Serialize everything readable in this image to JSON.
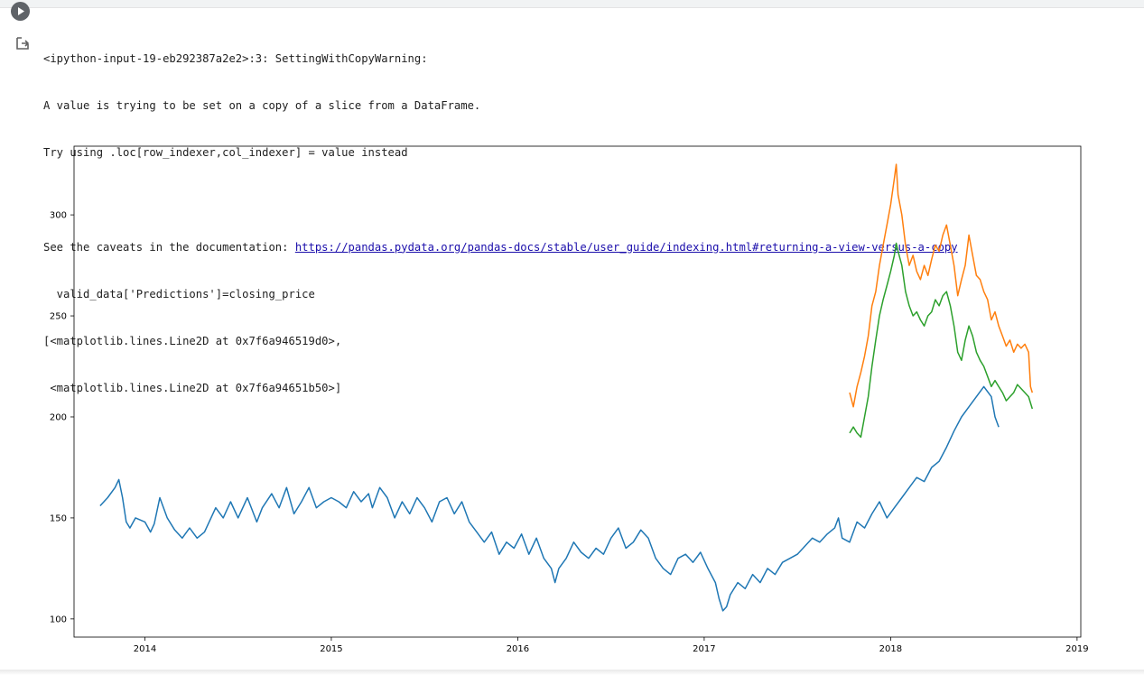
{
  "output": {
    "lines": [
      "<ipython-input-19-eb292387a2e2>:3: SettingWithCopyWarning:",
      "A value is trying to be set on a copy of a slice from a DataFrame.",
      "Try using .loc[row_indexer,col_indexer] = value instead",
      "",
      "  valid_data['Predictions']=closing_price",
      "[<matplotlib.lines.Line2D at 0x7f6a946519d0>,",
      " <matplotlib.lines.Line2D at 0x7f6a94651b50>]"
    ],
    "caveat_prefix": "See the caveats in the documentation: ",
    "caveat_link": "https://pandas.pydata.org/pandas-docs/stable/user_guide/indexing.html#returning-a-view-versus-a-copy"
  },
  "icons": {
    "run": "play-circle-icon",
    "output": "output-arrow-icon"
  },
  "chart_data": {
    "type": "line",
    "title": "",
    "xlabel": "",
    "ylabel": "",
    "xlim": [
      2013.62,
      2019.02
    ],
    "ylim": [
      91,
      334
    ],
    "xticks": [
      "2014",
      "2015",
      "2016",
      "2017",
      "2018",
      "2019"
    ],
    "yticks": [
      "100",
      "150",
      "200",
      "250",
      "300"
    ],
    "grid": false,
    "legend": "none",
    "series": [
      {
        "color": "#1f77b4",
        "points": [
          [
            2013.76,
            156
          ],
          [
            2013.8,
            160
          ],
          [
            2013.84,
            165
          ],
          [
            2013.86,
            169
          ],
          [
            2013.88,
            160
          ],
          [
            2013.9,
            148
          ],
          [
            2013.92,
            145
          ],
          [
            2013.95,
            150
          ],
          [
            2014.0,
            148
          ],
          [
            2014.03,
            143
          ],
          [
            2014.05,
            147
          ],
          [
            2014.08,
            160
          ],
          [
            2014.12,
            150
          ],
          [
            2014.16,
            144
          ],
          [
            2014.2,
            140
          ],
          [
            2014.24,
            145
          ],
          [
            2014.28,
            140
          ],
          [
            2014.32,
            143
          ],
          [
            2014.38,
            155
          ],
          [
            2014.42,
            150
          ],
          [
            2014.46,
            158
          ],
          [
            2014.5,
            150
          ],
          [
            2014.55,
            160
          ],
          [
            2014.6,
            148
          ],
          [
            2014.63,
            155
          ],
          [
            2014.68,
            162
          ],
          [
            2014.72,
            155
          ],
          [
            2014.76,
            165
          ],
          [
            2014.8,
            152
          ],
          [
            2014.84,
            158
          ],
          [
            2014.88,
            165
          ],
          [
            2014.92,
            155
          ],
          [
            2014.96,
            158
          ],
          [
            2015.0,
            160
          ],
          [
            2015.04,
            158
          ],
          [
            2015.08,
            155
          ],
          [
            2015.12,
            163
          ],
          [
            2015.16,
            158
          ],
          [
            2015.2,
            162
          ],
          [
            2015.22,
            155
          ],
          [
            2015.26,
            165
          ],
          [
            2015.3,
            160
          ],
          [
            2015.34,
            150
          ],
          [
            2015.38,
            158
          ],
          [
            2015.42,
            152
          ],
          [
            2015.46,
            160
          ],
          [
            2015.5,
            155
          ],
          [
            2015.54,
            148
          ],
          [
            2015.58,
            158
          ],
          [
            2015.62,
            160
          ],
          [
            2015.66,
            152
          ],
          [
            2015.7,
            158
          ],
          [
            2015.74,
            148
          ],
          [
            2015.78,
            143
          ],
          [
            2015.82,
            138
          ],
          [
            2015.86,
            143
          ],
          [
            2015.9,
            132
          ],
          [
            2015.94,
            138
          ],
          [
            2015.98,
            135
          ],
          [
            2016.02,
            142
          ],
          [
            2016.06,
            132
          ],
          [
            2016.1,
            140
          ],
          [
            2016.14,
            130
          ],
          [
            2016.18,
            125
          ],
          [
            2016.2,
            118
          ],
          [
            2016.22,
            125
          ],
          [
            2016.26,
            130
          ],
          [
            2016.3,
            138
          ],
          [
            2016.34,
            133
          ],
          [
            2016.38,
            130
          ],
          [
            2016.42,
            135
          ],
          [
            2016.46,
            132
          ],
          [
            2016.5,
            140
          ],
          [
            2016.54,
            145
          ],
          [
            2016.58,
            135
          ],
          [
            2016.62,
            138
          ],
          [
            2016.66,
            144
          ],
          [
            2016.7,
            140
          ],
          [
            2016.74,
            130
          ],
          [
            2016.78,
            125
          ],
          [
            2016.82,
            122
          ],
          [
            2016.86,
            130
          ],
          [
            2016.9,
            132
          ],
          [
            2016.94,
            128
          ],
          [
            2016.98,
            133
          ],
          [
            2017.02,
            125
          ],
          [
            2017.06,
            118
          ],
          [
            2017.08,
            110
          ],
          [
            2017.1,
            104
          ],
          [
            2017.12,
            106
          ],
          [
            2017.14,
            112
          ],
          [
            2017.18,
            118
          ],
          [
            2017.22,
            115
          ],
          [
            2017.26,
            122
          ],
          [
            2017.3,
            118
          ],
          [
            2017.34,
            125
          ],
          [
            2017.38,
            122
          ],
          [
            2017.42,
            128
          ],
          [
            2017.46,
            130
          ],
          [
            2017.5,
            132
          ],
          [
            2017.54,
            136
          ],
          [
            2017.58,
            140
          ],
          [
            2017.62,
            138
          ],
          [
            2017.66,
            142
          ],
          [
            2017.7,
            145
          ],
          [
            2017.72,
            150
          ],
          [
            2017.74,
            140
          ],
          [
            2017.78,
            138
          ],
          [
            2017.82,
            148
          ],
          [
            2017.86,
            145
          ],
          [
            2017.9,
            152
          ],
          [
            2017.94,
            158
          ],
          [
            2017.98,
            150
          ],
          [
            2018.02,
            155
          ],
          [
            2018.06,
            160
          ],
          [
            2018.1,
            165
          ],
          [
            2018.14,
            170
          ],
          [
            2018.18,
            168
          ],
          [
            2018.22,
            175
          ],
          [
            2018.26,
            178
          ],
          [
            2018.3,
            185
          ],
          [
            2018.34,
            193
          ],
          [
            2018.38,
            200
          ],
          [
            2018.42,
            205
          ],
          [
            2018.46,
            210
          ],
          [
            2018.5,
            215
          ],
          [
            2018.54,
            210
          ],
          [
            2018.56,
            200
          ],
          [
            2018.58,
            195
          ]
        ]
      },
      {
        "color": "#ff7f0e",
        "points": [
          [
            2017.78,
            212
          ],
          [
            2017.8,
            205
          ],
          [
            2017.82,
            215
          ],
          [
            2017.84,
            222
          ],
          [
            2017.86,
            230
          ],
          [
            2017.88,
            240
          ],
          [
            2017.9,
            255
          ],
          [
            2017.92,
            262
          ],
          [
            2017.94,
            275
          ],
          [
            2017.96,
            285
          ],
          [
            2017.98,
            295
          ],
          [
            2018.0,
            305
          ],
          [
            2018.02,
            318
          ],
          [
            2018.03,
            325
          ],
          [
            2018.04,
            310
          ],
          [
            2018.06,
            300
          ],
          [
            2018.08,
            285
          ],
          [
            2018.1,
            275
          ],
          [
            2018.12,
            280
          ],
          [
            2018.14,
            272
          ],
          [
            2018.16,
            268
          ],
          [
            2018.18,
            275
          ],
          [
            2018.2,
            270
          ],
          [
            2018.22,
            278
          ],
          [
            2018.24,
            285
          ],
          [
            2018.26,
            282
          ],
          [
            2018.28,
            290
          ],
          [
            2018.3,
            295
          ],
          [
            2018.32,
            285
          ],
          [
            2018.34,
            275
          ],
          [
            2018.36,
            260
          ],
          [
            2018.38,
            268
          ],
          [
            2018.4,
            275
          ],
          [
            2018.42,
            290
          ],
          [
            2018.44,
            280
          ],
          [
            2018.46,
            270
          ],
          [
            2018.48,
            268
          ],
          [
            2018.5,
            262
          ],
          [
            2018.52,
            258
          ],
          [
            2018.54,
            248
          ],
          [
            2018.56,
            252
          ],
          [
            2018.58,
            245
          ],
          [
            2018.6,
            240
          ],
          [
            2018.62,
            235
          ],
          [
            2018.64,
            238
          ],
          [
            2018.66,
            232
          ],
          [
            2018.68,
            236
          ],
          [
            2018.7,
            234
          ],
          [
            2018.72,
            236
          ],
          [
            2018.74,
            232
          ],
          [
            2018.75,
            215
          ],
          [
            2018.76,
            212
          ]
        ]
      },
      {
        "color": "#2ca02c",
        "points": [
          [
            2017.78,
            192
          ],
          [
            2017.8,
            195
          ],
          [
            2017.82,
            192
          ],
          [
            2017.84,
            190
          ],
          [
            2017.86,
            200
          ],
          [
            2017.88,
            210
          ],
          [
            2017.9,
            225
          ],
          [
            2017.92,
            238
          ],
          [
            2017.94,
            250
          ],
          [
            2017.96,
            258
          ],
          [
            2017.98,
            265
          ],
          [
            2018.0,
            272
          ],
          [
            2018.02,
            280
          ],
          [
            2018.03,
            286
          ],
          [
            2018.04,
            282
          ],
          [
            2018.06,
            275
          ],
          [
            2018.08,
            262
          ],
          [
            2018.1,
            255
          ],
          [
            2018.12,
            250
          ],
          [
            2018.14,
            252
          ],
          [
            2018.16,
            248
          ],
          [
            2018.18,
            245
          ],
          [
            2018.2,
            250
          ],
          [
            2018.22,
            252
          ],
          [
            2018.24,
            258
          ],
          [
            2018.26,
            255
          ],
          [
            2018.28,
            260
          ],
          [
            2018.3,
            262
          ],
          [
            2018.32,
            255
          ],
          [
            2018.34,
            245
          ],
          [
            2018.36,
            232
          ],
          [
            2018.38,
            228
          ],
          [
            2018.4,
            238
          ],
          [
            2018.42,
            245
          ],
          [
            2018.44,
            240
          ],
          [
            2018.46,
            232
          ],
          [
            2018.48,
            228
          ],
          [
            2018.5,
            225
          ],
          [
            2018.52,
            220
          ],
          [
            2018.54,
            215
          ],
          [
            2018.56,
            218
          ],
          [
            2018.58,
            215
          ],
          [
            2018.6,
            212
          ],
          [
            2018.62,
            208
          ],
          [
            2018.64,
            210
          ],
          [
            2018.66,
            212
          ],
          [
            2018.68,
            216
          ],
          [
            2018.7,
            214
          ],
          [
            2018.72,
            212
          ],
          [
            2018.74,
            210
          ],
          [
            2018.76,
            204
          ]
        ]
      }
    ]
  }
}
